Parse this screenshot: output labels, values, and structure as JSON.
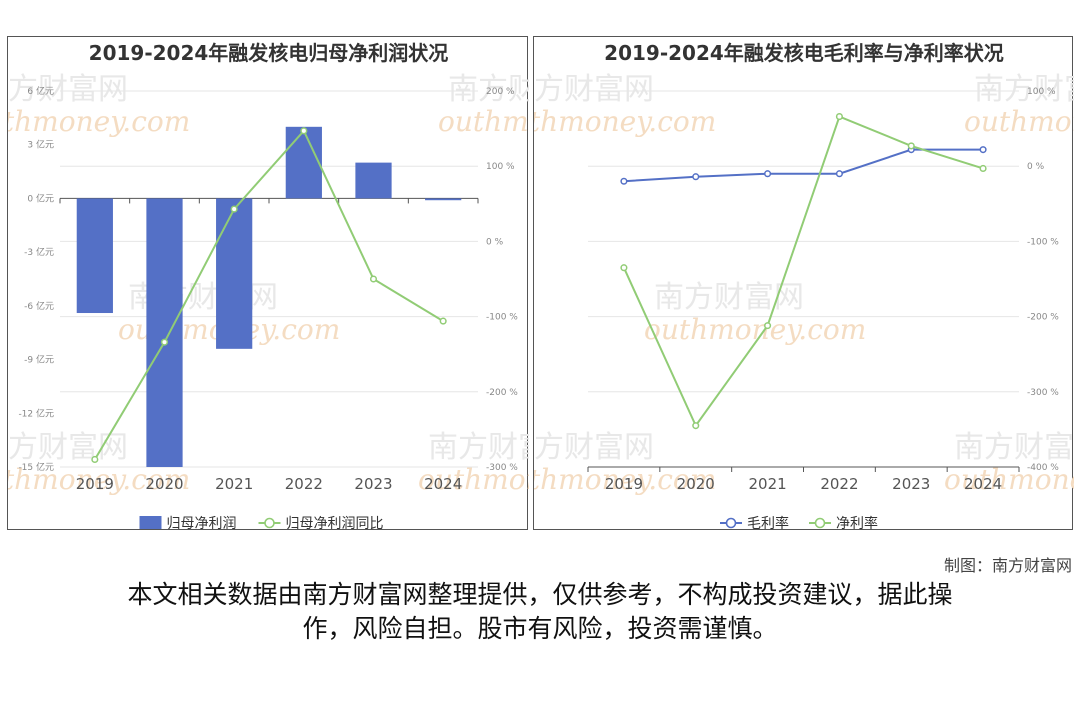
{
  "chart_data": [
    {
      "type": "bar+line",
      "title": "2019-2024年融发核电归母净利润状况",
      "categories": [
        "2019",
        "2020",
        "2021",
        "2022",
        "2023",
        "2024"
      ],
      "y_left": {
        "unit": "亿元",
        "ylim": [
          -15,
          6
        ],
        "ticks": [
          6,
          3,
          0,
          -3,
          -6,
          -9,
          -12,
          -15
        ],
        "tick_labels": [
          "6 亿元",
          "3 亿元",
          "0 亿元",
          "-3 亿元",
          "-6 亿元",
          "-9 亿元",
          "-12 亿元",
          "-15 亿元"
        ]
      },
      "y_right": {
        "unit": "%",
        "ylim": [
          -300,
          200
        ],
        "ticks": [
          200,
          100,
          0,
          -100,
          -200,
          -300
        ],
        "tick_labels": [
          "200 %",
          "100 %",
          "0 %",
          "-100 %",
          "-200 %",
          "-300 %"
        ]
      },
      "series": [
        {
          "name": "归母净利润",
          "kind": "bar",
          "axis": "left",
          "color": "#5470c6",
          "values": [
            -6.4,
            -15.0,
            -8.4,
            4.0,
            2.0,
            -0.1
          ]
        },
        {
          "name": "归母净利润同比",
          "kind": "line",
          "axis": "right",
          "color": "#91cc75",
          "values": [
            -290,
            -134,
            43,
            147,
            -50,
            -106
          ]
        }
      ],
      "grid": true,
      "legend_position": "bottom"
    },
    {
      "type": "line",
      "title": "2019-2024年融发核电毛利率与净利率状况",
      "categories": [
        "2019",
        "2020",
        "2021",
        "2022",
        "2023",
        "2024"
      ],
      "y_right": {
        "unit": "%",
        "ylim": [
          -400,
          100
        ],
        "ticks": [
          100,
          0,
          -100,
          -200,
          -300,
          -400
        ],
        "tick_labels": [
          "100 %",
          "0 %",
          "-100 %",
          "-200 %",
          "-300 %",
          "-400 %"
        ]
      },
      "series": [
        {
          "name": "毛利率",
          "kind": "line",
          "axis": "right",
          "color": "#5470c6",
          "values": [
            -20,
            -14,
            -10,
            -10,
            22,
            22
          ]
        },
        {
          "name": "净利率",
          "kind": "line",
          "axis": "right",
          "color": "#91cc75",
          "values": [
            -135,
            -345,
            -212,
            66,
            27,
            -3
          ]
        }
      ],
      "grid": true,
      "legend_position": "bottom"
    }
  ],
  "watermark": {
    "cn": "南方财富网",
    "en": "outhmoney.com"
  },
  "footer": {
    "credit": "制图：南方财富网",
    "disclaimer_line1": "本文相关数据由南方财富网整理提供，仅供参考，不构成投资建议，据此操",
    "disclaimer_line2": "作，风险自担。股市有风险，投资需谨慎。"
  }
}
